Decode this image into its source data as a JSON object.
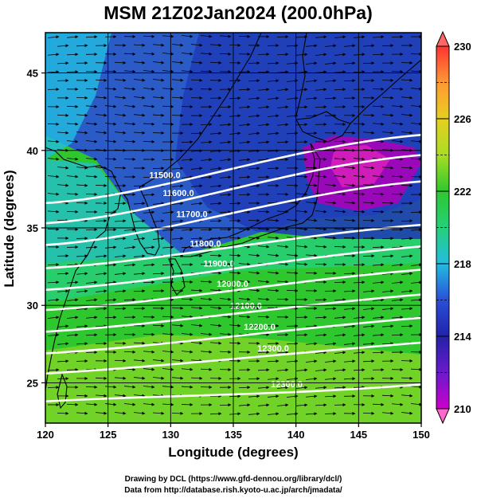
{
  "title": "MSM 21Z02Jan2024 (200.0hPa)",
  "xlabel": "Longitude (degrees)",
  "ylabel": "Latitude  (degrees)",
  "footer": {
    "line1": "Drawing by DCL (https://www.gfd-dennou.org/library/dcl/)",
    "line2": "Data from http://database.rish.kyoto-u.ac.jp/arch/jmadata/"
  },
  "chart_data": {
    "type": "heatmap",
    "xlim": [
      120,
      150
    ],
    "ylim": [
      22.4,
      47.6
    ],
    "xticks": [
      "120",
      "125",
      "130",
      "135",
      "140",
      "145",
      "150"
    ],
    "yticks": [
      "25",
      "30",
      "35",
      "40",
      "45"
    ],
    "colorbar": {
      "min": 210,
      "max": 230,
      "ticks": [
        "210",
        "214",
        "218",
        "222",
        "226",
        "230"
      ],
      "colors": [
        "#ff66cc",
        "#cc00cc",
        "#2222aa",
        "#2a4fd8",
        "#22bde0",
        "#26d07a",
        "#2ec82e",
        "#aadd22",
        "#e6d020",
        "#ff9933",
        "#ff3333"
      ]
    },
    "contours": [
      {
        "label": "11500.0",
        "lat_west": 36.6,
        "lat_east": 41.0
      },
      {
        "label": "11600.0",
        "lat_west": 35.3,
        "lat_east": 39.7
      },
      {
        "label": "11700.0",
        "lat_west": 33.9,
        "lat_east": 38.0
      },
      {
        "label": "11800.0",
        "lat_west": 32.4,
        "lat_east": 35.2
      },
      {
        "label": "11900.0",
        "lat_west": 31.0,
        "lat_east": 33.8
      },
      {
        "label": "12000.0",
        "lat_west": 29.7,
        "lat_east": 32.3
      },
      {
        "label": "12100.0",
        "lat_west": 28.3,
        "lat_east": 30.7
      },
      {
        "label": "12200.0",
        "lat_west": 26.9,
        "lat_east": 29.2
      },
      {
        "label": "12300.0",
        "lat_west": 25.6,
        "lat_east": 27.6
      },
      {
        "label": "12300.0",
        "lat_west": 23.8,
        "lat_east": 24.9
      }
    ],
    "wind": "westerly vectors"
  }
}
